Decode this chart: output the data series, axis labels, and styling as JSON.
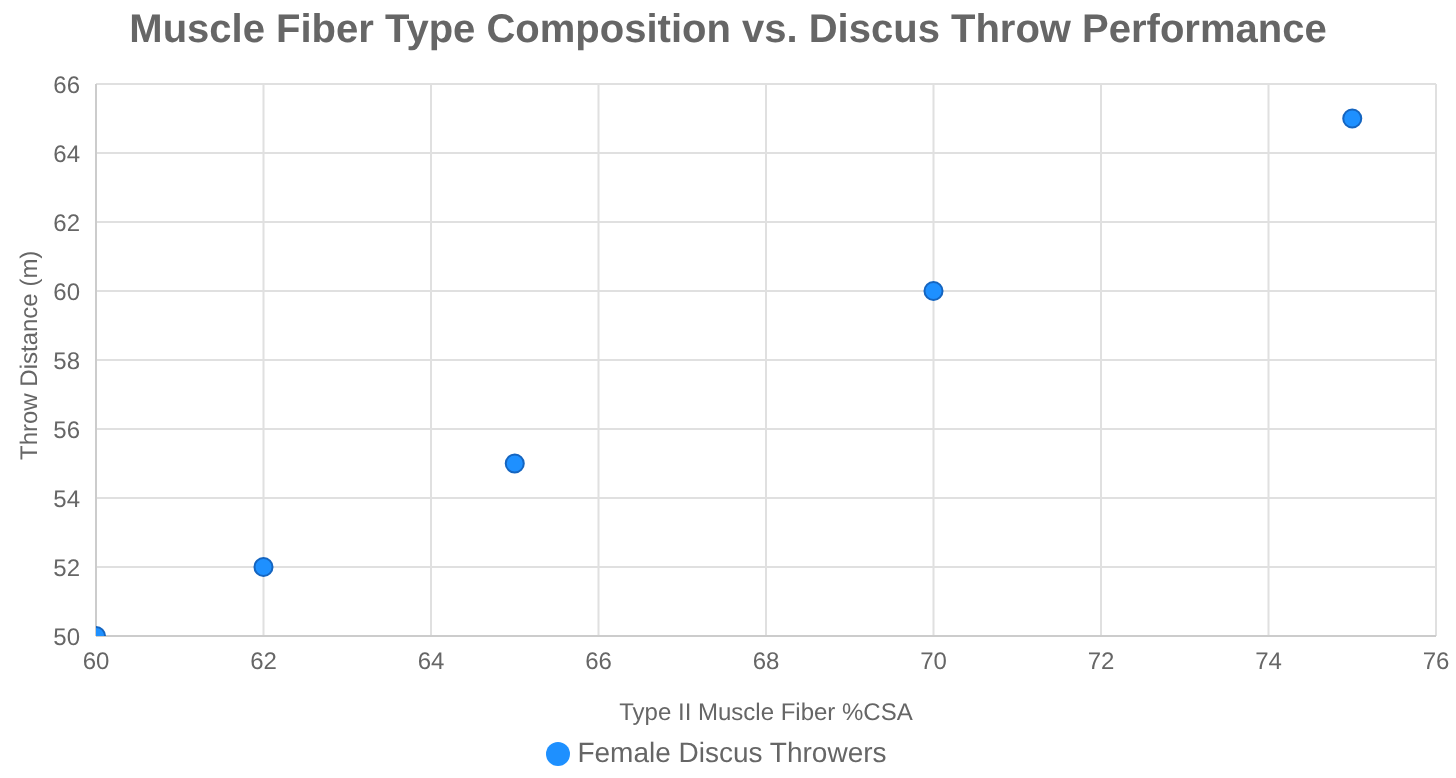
{
  "chart_data": {
    "type": "scatter",
    "title": "Muscle Fiber Type Composition vs. Discus Throw Performance",
    "xlabel": "Type II Muscle Fiber %CSA",
    "ylabel": "Throw Distance (m)",
    "series": [
      {
        "name": "Female Discus Throwers",
        "color": "#1e90ff",
        "x": [
          60,
          62,
          65,
          70,
          75
        ],
        "values": [
          50,
          52,
          55,
          60,
          65
        ]
      }
    ],
    "xlim": [
      60,
      76
    ],
    "xticks": [
      60,
      62,
      64,
      66,
      68,
      70,
      72,
      74,
      76
    ],
    "ylim": [
      50,
      66
    ],
    "yticks": [
      50,
      52,
      54,
      56,
      58,
      60,
      62,
      64,
      66
    ],
    "grid": true,
    "legend": "bottom",
    "marker": "circle"
  }
}
